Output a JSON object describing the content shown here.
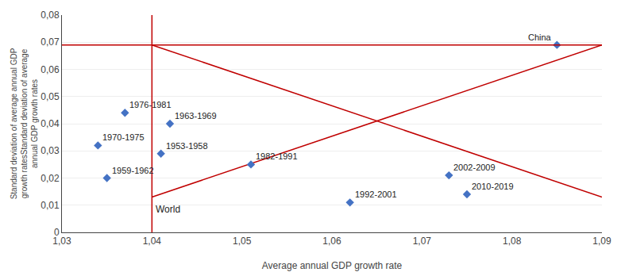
{
  "chart_data": {
    "type": "scatter",
    "x": [
      1.041,
      1.035,
      1.042,
      1.034,
      1.037,
      1.051,
      1.062,
      1.073,
      1.075,
      1.085
    ],
    "values": [
      0.029,
      0.02,
      0.04,
      0.032,
      0.044,
      0.025,
      0.011,
      0.021,
      0.014,
      0.069
    ],
    "labels": [
      "1953-1958",
      "1959-1962",
      "1963-1969",
      "1970-1975",
      "1976-1981",
      "1982-1991",
      "1992-2001",
      "2002-2009",
      "2010-2019",
      "China"
    ],
    "color": "#4472C4",
    "marker": "diamond",
    "lines": [
      {
        "type": "vertical",
        "x": 1.04,
        "color": "#C00000"
      },
      {
        "type": "horizontal",
        "y": 0.069,
        "color": "#C00000"
      },
      {
        "type": "segment",
        "x": [
          1.04,
          1.09
        ],
        "y": [
          0.069,
          0.013
        ],
        "color": "#C00000"
      },
      {
        "type": "segment",
        "x": [
          1.04,
          1.09
        ],
        "y": [
          0.013,
          0.069
        ],
        "color": "#C00000"
      }
    ],
    "annotations": [
      {
        "text": "World",
        "x": 1.04,
        "y": 0.011
      }
    ],
    "x_label": "Average annual GDP growth rate",
    "y_label": "Standard deviation of average annual GDP\ngrowth ratesStandard deviation of average\nannual GDP growth rates",
    "xlim": [
      1.03,
      1.09
    ],
    "xticks": [
      {
        "value": 1.03,
        "label": "1,03"
      },
      {
        "value": 1.04,
        "label": "1,04"
      },
      {
        "value": 1.05,
        "label": "1,05"
      },
      {
        "value": 1.06,
        "label": "1,06"
      },
      {
        "value": 1.07,
        "label": "1,07"
      },
      {
        "value": 1.08,
        "label": "1,08"
      },
      {
        "value": 1.09,
        "label": "1,09"
      }
    ],
    "ylim": [
      0,
      0.08
    ],
    "yticks": [
      0,
      {
        "value": 0.01,
        "label": "0,01"
      },
      {
        "value": 0.02,
        "label": "0,02"
      },
      {
        "value": 0.03,
        "label": "0,03"
      },
      {
        "value": 0.04,
        "label": "0,04"
      },
      {
        "value": 0.05,
        "label": "0,05"
      },
      {
        "value": 0.06,
        "label": "0,06"
      },
      {
        "value": 0.07,
        "label": "0,07"
      },
      {
        "value": 0.08,
        "label": "0,08"
      }
    ],
    "grid": "y"
  }
}
